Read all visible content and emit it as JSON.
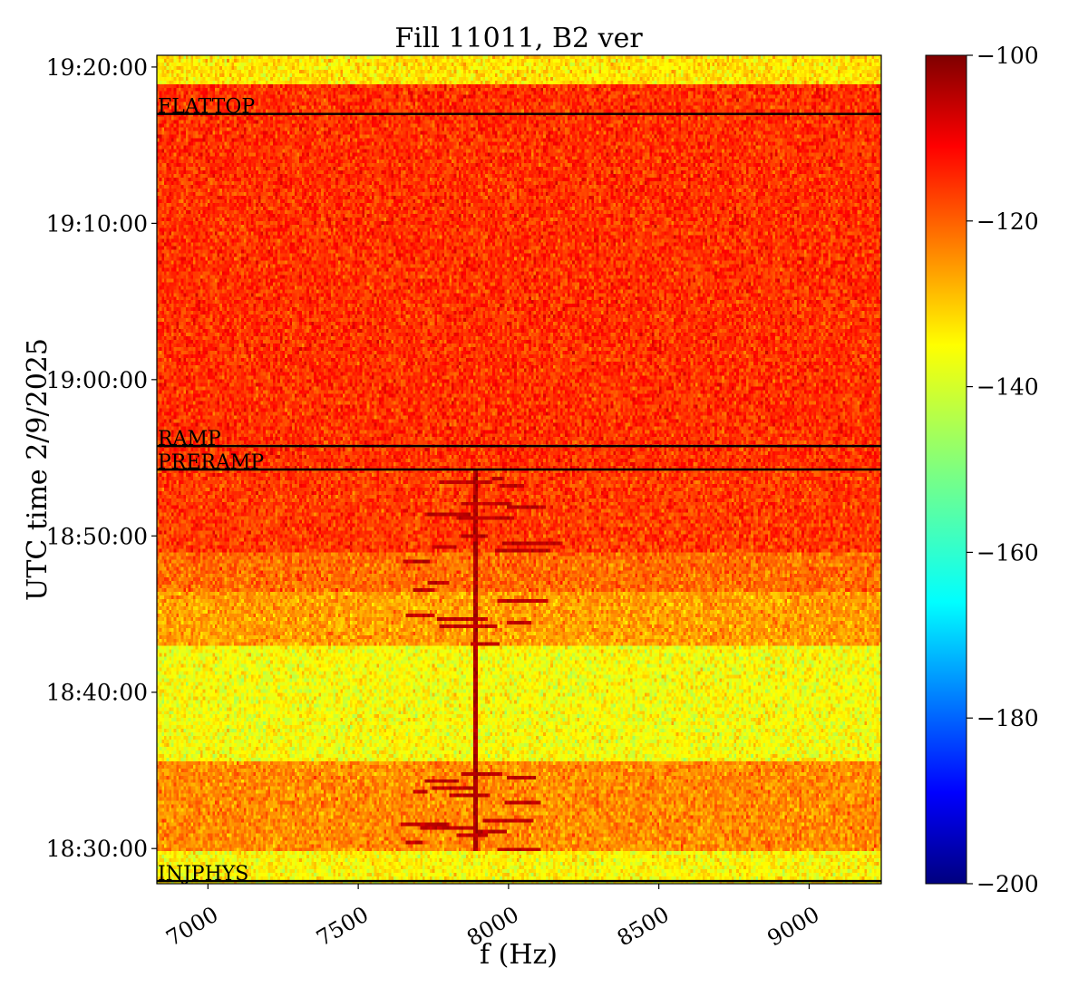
{
  "chart_data": {
    "type": "heatmap",
    "title": "Fill 11011, B2 ver",
    "xlabel": "f (Hz)",
    "ylabel": "UTC time 2/9/2025",
    "xlim": [
      6830,
      9240
    ],
    "ylim": [
      "18:27:45",
      "19:20:45"
    ],
    "x_ticks": [
      {
        "value": 7000,
        "label": "7000"
      },
      {
        "value": 7500,
        "label": "7500"
      },
      {
        "value": 8000,
        "label": "8000"
      },
      {
        "value": 8500,
        "label": "8500"
      },
      {
        "value": 9000,
        "label": "9000"
      }
    ],
    "y_ticks": [
      {
        "value": "18:30:00",
        "label": "18:30:00"
      },
      {
        "value": "18:40:00",
        "label": "18:40:00"
      },
      {
        "value": "18:50:00",
        "label": "18:50:00"
      },
      {
        "value": "19:00:00",
        "label": "19:00:00"
      },
      {
        "value": "19:10:00",
        "label": "19:10:00"
      },
      {
        "value": "19:20:00",
        "label": "19:20:00"
      }
    ],
    "colorbar": {
      "colormap": "jet",
      "range": [
        -200,
        -100
      ],
      "ticks": [
        {
          "value": -100,
          "label": "−100"
        },
        {
          "value": -120,
          "label": "−120"
        },
        {
          "value": -140,
          "label": "−140"
        },
        {
          "value": -160,
          "label": "−160"
        },
        {
          "value": -180,
          "label": "−180"
        },
        {
          "value": -200,
          "label": "−200"
        }
      ]
    },
    "time_bands": [
      {
        "start": "18:27:45",
        "end": "18:29:45",
        "level": -137
      },
      {
        "start": "18:29:45",
        "end": "18:35:30",
        "level": -126
      },
      {
        "start": "18:35:30",
        "end": "18:43:00",
        "level": -138
      },
      {
        "start": "18:43:00",
        "end": "18:46:30",
        "level": -128
      },
      {
        "start": "18:46:30",
        "end": "18:49:00",
        "level": -123
      },
      {
        "start": "18:49:00",
        "end": "18:54:15",
        "level": -118
      },
      {
        "start": "18:54:15",
        "end": "19:19:00",
        "level": -117
      },
      {
        "start": "19:19:00",
        "end": "19:20:45",
        "level": -135
      }
    ],
    "features": [
      {
        "start": "18:29:45",
        "end": "18:35:30",
        "freq_range": [
          7600,
          8100
        ],
        "level": -106,
        "description": "narrow-band lines"
      },
      {
        "start": "18:43:00",
        "end": "18:54:15",
        "freq_range": [
          7600,
          8100
        ],
        "level": -106,
        "description": "narrow-band lines"
      },
      {
        "start": "18:29:45",
        "end": "18:54:15",
        "freq": 7890,
        "level": -104,
        "description": "persistent line"
      }
    ],
    "markers": [
      {
        "time": "18:27:55",
        "label": "INJPHYS"
      },
      {
        "time": "18:54:15",
        "label": "PRERAMP"
      },
      {
        "time": "18:55:45",
        "label": "RAMP"
      },
      {
        "time": "19:17:00",
        "label": "FLATTOP"
      }
    ]
  }
}
